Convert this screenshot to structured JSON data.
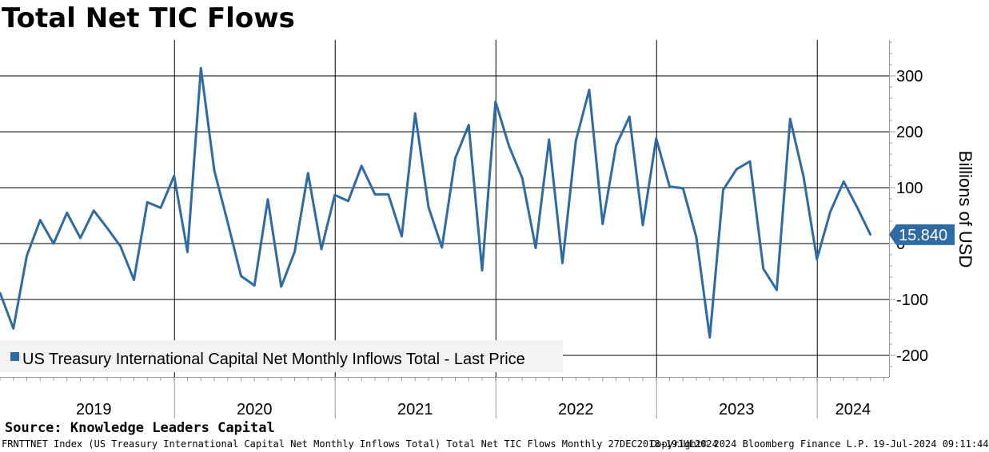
{
  "chart_data": {
    "type": "line",
    "title": "Total Net TIC Flows",
    "ylabel": "Billions of USD",
    "xlabel": "",
    "ylim": [
      -240,
      360
    ],
    "yticks": [
      -200,
      -100,
      0,
      100,
      200,
      300
    ],
    "ytick_labels": [
      "-200",
      "-100",
      "0",
      "100",
      "200",
      "300"
    ],
    "year_labels": [
      "2019",
      "2020",
      "2021",
      "2022",
      "2023",
      "2024"
    ],
    "legend": "US Treasury International Capital Net Monthly Inflows Total - Last Price",
    "last_value": 15.84,
    "last_value_label": "15.840",
    "grid": true,
    "series": [
      {
        "name": "US Treasury International Capital Net Monthly Inflows Total - Last Price",
        "color": "#2e6aa4",
        "start": "2018-12",
        "values": [
          -88,
          -152,
          -22,
          42,
          0,
          55,
          10,
          59,
          28,
          -5,
          -65,
          74,
          64,
          121,
          -15,
          314,
          131,
          38,
          -58,
          -75,
          79,
          -77,
          -15,
          126,
          -10,
          87,
          76,
          139,
          88,
          88,
          13,
          233,
          65,
          -7,
          153,
          212,
          -48,
          254,
          175,
          117,
          -8,
          186,
          -35,
          184,
          275,
          35,
          175,
          227,
          33,
          188,
          102,
          99,
          11,
          -168,
          96,
          133,
          147,
          -45,
          -83,
          223,
          120,
          -28,
          57,
          111,
          65,
          15.84
        ]
      }
    ]
  },
  "source": "Source: Knowledge Leaders Capital",
  "footer": {
    "left": "FRNTTNET Index (US Treasury International Capital Net Monthly Inflows Total) Total Net TIC Flows  Monthly 27DEC2018-19JUL2024",
    "middle": "Copyright© 2024 Bloomberg Finance L.P.",
    "right": "19-Jul-2024 09:11:44"
  },
  "colors": {
    "line": "#2e6aa4",
    "grid": "#000000",
    "legend_bg": "#f2f2f2",
    "value_box": "#2e6aa4"
  }
}
